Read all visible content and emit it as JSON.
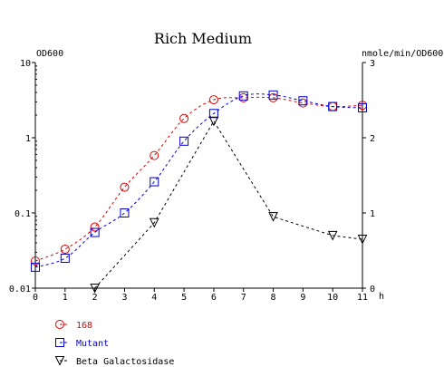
{
  "chart_data": {
    "type": "line",
    "title": "Rich Medium",
    "xlabel": "h",
    "ylabel_left": "OD600",
    "ylabel_right": "nmole/min/OD600",
    "x_ticks": [
      0,
      1,
      2,
      3,
      4,
      5,
      6,
      7,
      8,
      9,
      10,
      11
    ],
    "xlim": [
      0,
      11
    ],
    "y_left_scale": "log",
    "y_left_lim": [
      0.01,
      10
    ],
    "y_left_ticks": [
      {
        "value": 0.01,
        "label": "0.01"
      },
      {
        "value": 0.1,
        "label": "0.1"
      },
      {
        "value": 1,
        "label": "1"
      },
      {
        "value": 10,
        "label": "10"
      }
    ],
    "y_right_lim": [
      0,
      3
    ],
    "y_right_ticks": [
      {
        "value": 0,
        "label": "0"
      },
      {
        "value": 1,
        "label": "1"
      },
      {
        "value": 2,
        "label": "2"
      },
      {
        "value": 3,
        "label": "3"
      }
    ],
    "grid": false,
    "legend_position": "bottom-left",
    "series": [
      {
        "name": "168",
        "axis": "left",
        "color": "#e00000",
        "marker": "circle",
        "x": [
          0,
          1,
          2,
          3,
          4,
          5,
          6,
          7,
          8,
          9,
          10,
          11
        ],
        "y": [
          0.023,
          0.033,
          0.065,
          0.22,
          0.58,
          1.8,
          3.2,
          3.4,
          3.4,
          2.9,
          2.6,
          2.7
        ]
      },
      {
        "name": "Mutant",
        "axis": "left",
        "color": "#0000d0",
        "marker": "square",
        "x": [
          0,
          1,
          2,
          3,
          4,
          5,
          6,
          7,
          8,
          9,
          10,
          11
        ],
        "y": [
          0.019,
          0.025,
          0.055,
          0.1,
          0.26,
          0.9,
          2.1,
          3.6,
          3.7,
          3.1,
          2.6,
          2.5
        ]
      },
      {
        "name": "Beta Galactosidase",
        "axis": "right",
        "color": "#000000",
        "marker": "triangle-down",
        "x": [
          2,
          4,
          6,
          8,
          10,
          11
        ],
        "y": [
          0.0,
          0.87,
          2.22,
          0.95,
          0.7,
          0.65
        ]
      }
    ]
  }
}
